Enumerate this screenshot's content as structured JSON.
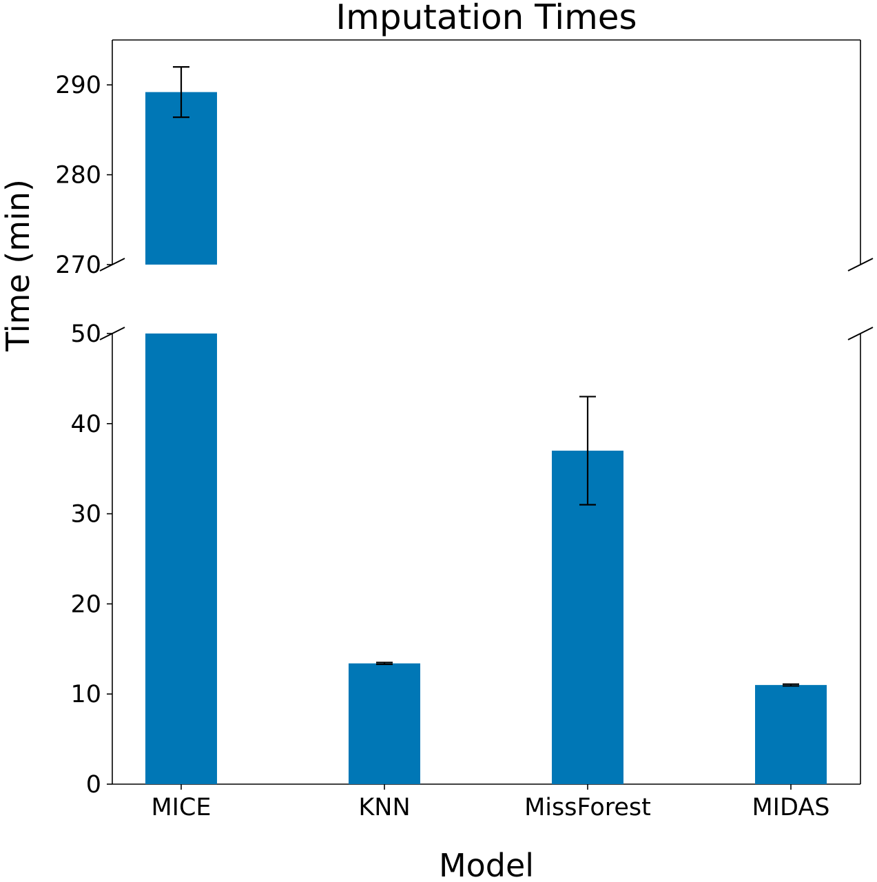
{
  "chart_data": {
    "type": "bar",
    "title": "Imputation Times",
    "xlabel": "Model",
    "ylabel": "Time (min)",
    "categories": [
      "MICE",
      "KNN",
      "MissForest",
      "MIDAS"
    ],
    "values": [
      289.2,
      13.4,
      37,
      11
    ],
    "errors": [
      2.8,
      0.1,
      6,
      0.1
    ],
    "bar_color": "#0077b6",
    "error_color": "#000000",
    "broken_axis": true,
    "segments": [
      {
        "name": "upper",
        "ylim": [
          270,
          295
        ],
        "ticks": [
          270,
          280,
          290
        ]
      },
      {
        "name": "lower",
        "ylim": [
          0,
          50
        ],
        "ticks": [
          0,
          10,
          20,
          30,
          40,
          50
        ]
      }
    ],
    "grid": false,
    "legend": "none"
  }
}
